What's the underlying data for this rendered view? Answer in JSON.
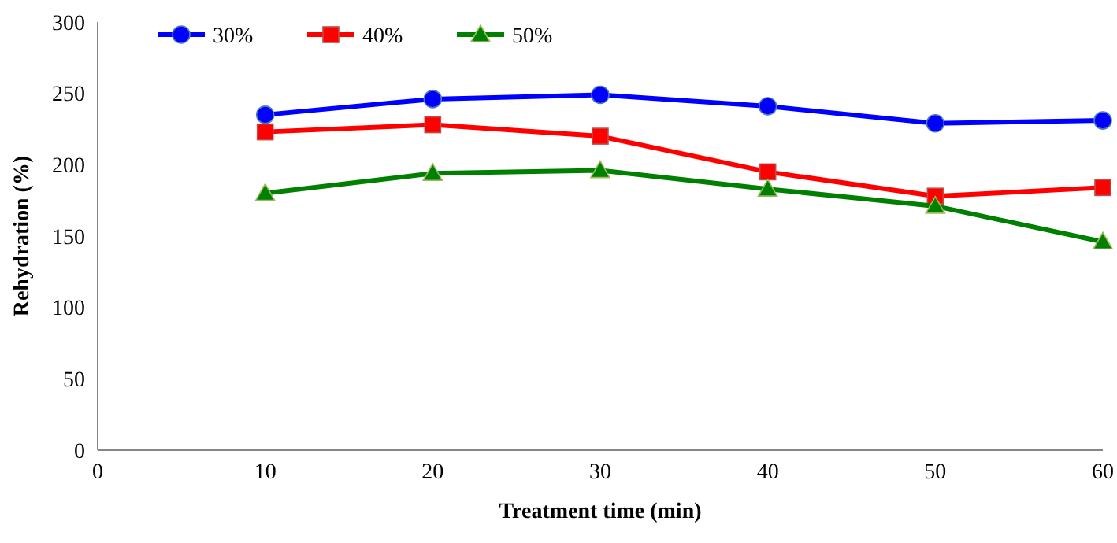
{
  "chart_data": {
    "type": "line",
    "xlabel": "Treatment time (min)",
    "ylabel": "Rehydration (%)",
    "x": [
      10,
      20,
      30,
      40,
      50,
      60
    ],
    "series": [
      {
        "name": "30%",
        "color": "#0000ff",
        "marker": "circle",
        "values": [
          235,
          246,
          249,
          241,
          229,
          231
        ]
      },
      {
        "name": "40%",
        "color": "#ff0000",
        "marker": "square",
        "values": [
          223,
          228,
          220,
          195,
          178,
          184
        ]
      },
      {
        "name": "50%",
        "color": "#008000",
        "marker": "triangle",
        "values": [
          180,
          194,
          196,
          183,
          171,
          146
        ]
      }
    ],
    "xlim": [
      0,
      60
    ],
    "xticks": [
      0,
      10,
      20,
      30,
      40,
      50,
      60
    ],
    "ylim": [
      0,
      300
    ],
    "yticks": [
      0,
      50,
      100,
      150,
      200,
      250,
      300
    ],
    "grid": false,
    "legend": "top left",
    "line_style": "solid"
  }
}
